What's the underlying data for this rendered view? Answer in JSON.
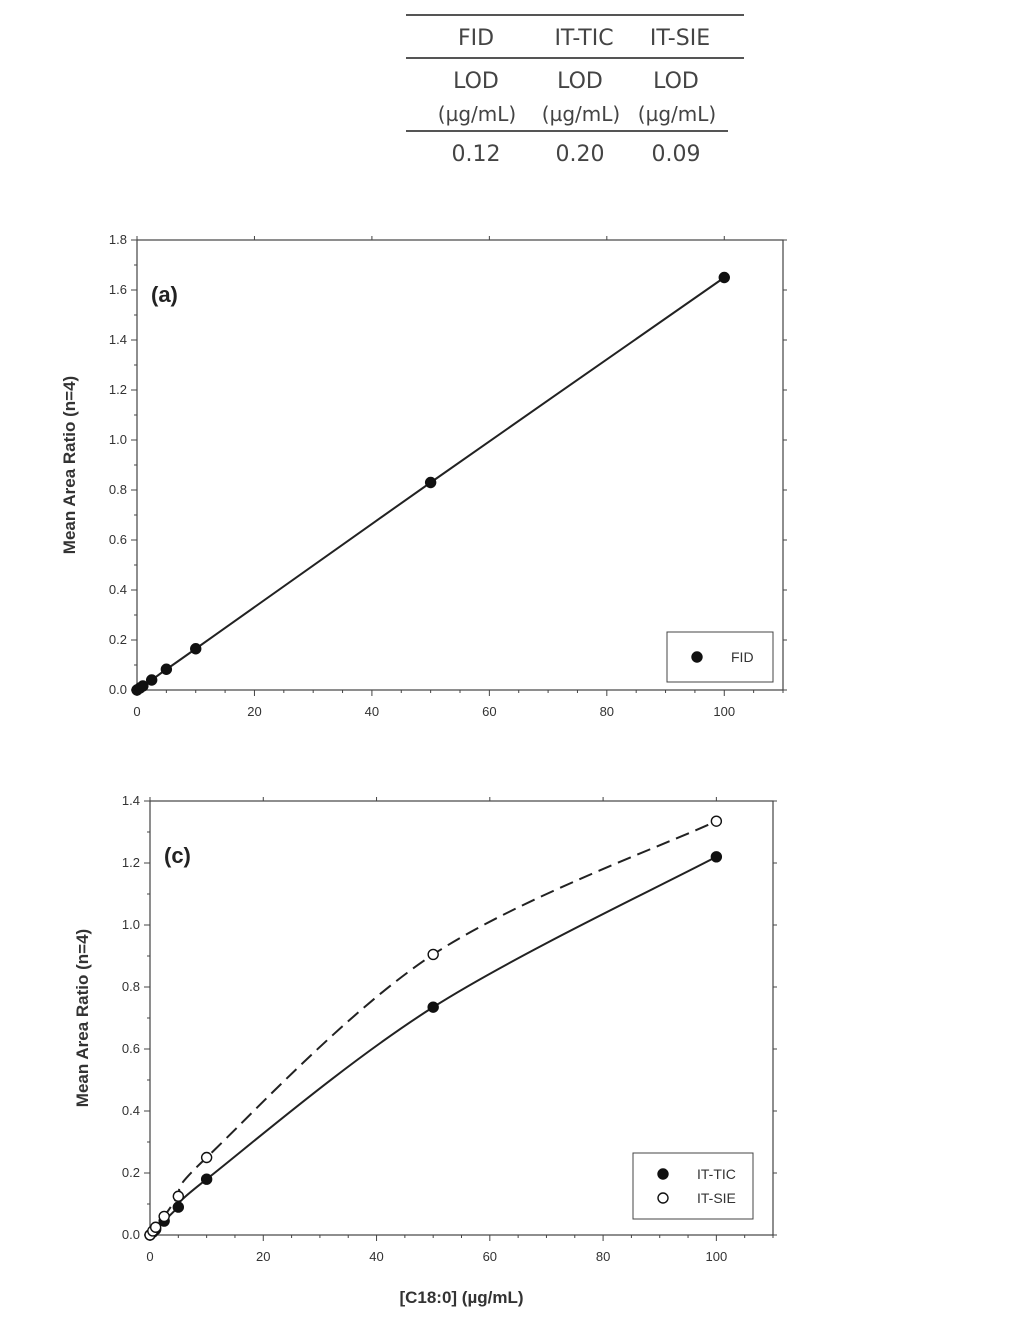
{
  "lod_table": {
    "headers": [
      "FID",
      "IT-TIC",
      "IT-SIE"
    ],
    "row_label": "LOD",
    "unit": "(µg/mL)",
    "values": [
      "0.12",
      "0.20",
      "0.09"
    ]
  },
  "chart_data": [
    {
      "type": "line",
      "panel_label": "(a)",
      "title": "",
      "xlabel": "",
      "ylabel": "Mean Area Ratio (n=4)",
      "xlim": [
        0,
        110
      ],
      "ylim": [
        0,
        1.8
      ],
      "x_ticks": [
        "0",
        "20",
        "40",
        "60",
        "80",
        "100"
      ],
      "y_ticks": [
        "0.0",
        "0.2",
        "0.4",
        "0.6",
        "0.8",
        "1.0",
        "1.2",
        "1.4",
        "1.6",
        "1.8"
      ],
      "legend_position": "bottom-right",
      "series": [
        {
          "name": "FID",
          "marker": "filled-circle",
          "line": "solid",
          "x": [
            0,
            0.5,
            1,
            2.5,
            5,
            10,
            50,
            100
          ],
          "y": [
            0.0,
            0.008,
            0.016,
            0.04,
            0.083,
            0.165,
            0.83,
            1.65
          ]
        }
      ]
    },
    {
      "type": "line",
      "panel_label": "(c)",
      "title": "",
      "xlabel": "[C18:0] (µg/mL)",
      "ylabel": "Mean Area Ratio (n=4)",
      "xlim": [
        0,
        110
      ],
      "ylim": [
        0,
        1.4
      ],
      "x_ticks": [
        "0",
        "20",
        "40",
        "60",
        "80",
        "100"
      ],
      "y_ticks": [
        "0.0",
        "0.2",
        "0.4",
        "0.6",
        "0.8",
        "1.0",
        "1.2",
        "1.4"
      ],
      "legend_position": "bottom-right",
      "series": [
        {
          "name": "IT-TIC",
          "marker": "filled-circle",
          "line": "solid",
          "x": [
            0,
            0.5,
            1,
            2.5,
            5,
            10,
            50,
            100
          ],
          "y": [
            0.0,
            0.009,
            0.018,
            0.045,
            0.09,
            0.18,
            0.735,
            1.22
          ]
        },
        {
          "name": "IT-SIE",
          "marker": "open-circle",
          "line": "dashed",
          "x": [
            0,
            0.5,
            1,
            2.5,
            5,
            10,
            50,
            100
          ],
          "y": [
            0.0,
            0.013,
            0.025,
            0.06,
            0.125,
            0.25,
            0.905,
            1.335
          ]
        }
      ]
    }
  ]
}
